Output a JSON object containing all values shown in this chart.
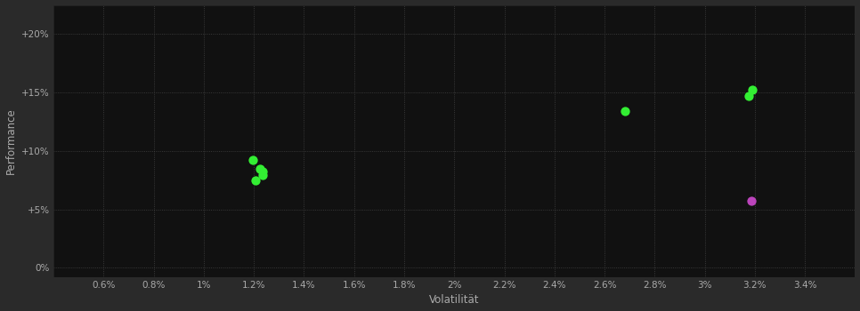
{
  "background_color": "#2a2a2a",
  "plot_bg_color": "#111111",
  "grid_color": "#444444",
  "xlabel": "Volatilität",
  "ylabel": "Performance",
  "xlabel_color": "#aaaaaa",
  "ylabel_color": "#aaaaaa",
  "tick_color": "#aaaaaa",
  "xlim": [
    0.004,
    0.036
  ],
  "ylim": [
    -0.008,
    0.225
  ],
  "xticks": [
    0.006,
    0.008,
    0.01,
    0.012,
    0.014,
    0.016,
    0.018,
    0.02,
    0.022,
    0.024,
    0.026,
    0.028,
    0.03,
    0.032,
    0.034
  ],
  "yticks": [
    0.0,
    0.05,
    0.1,
    0.15,
    0.2
  ],
  "xtick_labels": [
    "0.6%",
    "0.8%",
    "1%",
    "1.2%",
    "1.4%",
    "1.6%",
    "1.8%",
    "2%",
    "2.2%",
    "2.4%",
    "2.6%",
    "2.8%",
    "3%",
    "3.2%",
    "3.4%"
  ],
  "ytick_labels": [
    "0%",
    "+5%",
    "+10%",
    "+15%",
    "+20%"
  ],
  "green_points": [
    [
      0.01195,
      0.092
    ],
    [
      0.01225,
      0.085
    ],
    [
      0.01235,
      0.082
    ],
    [
      0.01235,
      0.079
    ],
    [
      0.01205,
      0.075
    ],
    [
      0.0268,
      0.134
    ],
    [
      0.0319,
      0.152
    ],
    [
      0.03175,
      0.147
    ]
  ],
  "magenta_points": [
    [
      0.03185,
      0.057
    ]
  ],
  "green_color": "#33ee33",
  "magenta_color": "#bb44bb",
  "marker_size": 55
}
